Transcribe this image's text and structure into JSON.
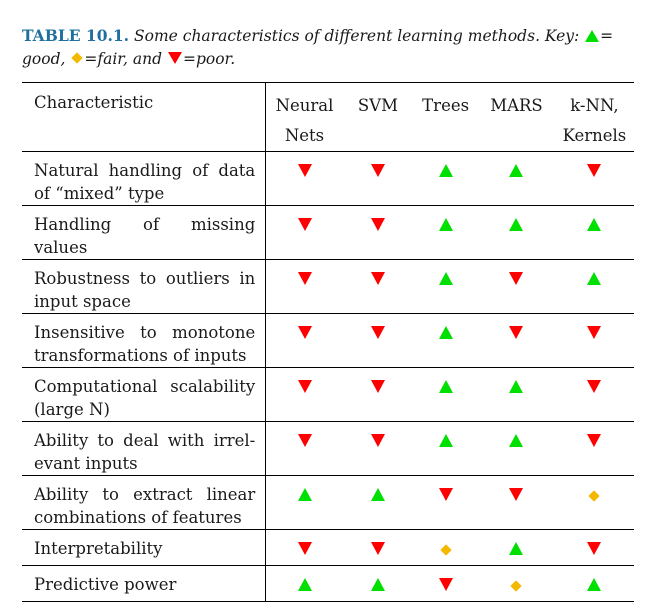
{
  "caption": {
    "label": "TABLE 10.1.",
    "text_before_key": "Some characteristics of different learning methods. Key:",
    "good": "= good,",
    "fair": "=fair, and",
    "poor": "=poor."
  },
  "table": {
    "characteristic_header": "Characteristic",
    "methods": [
      {
        "line1": "Neural",
        "line2": "Nets"
      },
      {
        "line1": "SVM",
        "line2": ""
      },
      {
        "line1": "Trees",
        "line2": ""
      },
      {
        "line1": "MARS",
        "line2": ""
      },
      {
        "line1": "k-NN,",
        "line2": "Kernels"
      }
    ],
    "rows": [
      {
        "characteristic": "Natural handling of data of “mixed” type",
        "ratings": [
          "poor",
          "poor",
          "good",
          "good",
          "poor"
        ]
      },
      {
        "characteristic": "Handling of missing values",
        "ratings": [
          "poor",
          "poor",
          "good",
          "good",
          "good"
        ]
      },
      {
        "characteristic": "Robustness to outliers in input space",
        "ratings": [
          "poor",
          "poor",
          "good",
          "poor",
          "good"
        ]
      },
      {
        "characteristic": "Insensitive to monotone transformations of inputs",
        "ratings": [
          "poor",
          "poor",
          "good",
          "poor",
          "poor"
        ]
      },
      {
        "characteristic": "Computational scalability (large N)",
        "ratings": [
          "poor",
          "poor",
          "good",
          "good",
          "poor"
        ]
      },
      {
        "characteristic": "Ability to deal with irrel-evant inputs",
        "ratings": [
          "poor",
          "poor",
          "good",
          "good",
          "poor"
        ]
      },
      {
        "characteristic": "Ability to extract linear combinations of features",
        "ratings": [
          "good",
          "good",
          "poor",
          "poor",
          "fair"
        ]
      },
      {
        "characteristic": "Interpretability",
        "ratings": [
          "poor",
          "poor",
          "fair",
          "good",
          "poor"
        ]
      },
      {
        "characteristic": "Predictive power",
        "ratings": [
          "good",
          "good",
          "poor",
          "fair",
          "good"
        ]
      }
    ]
  },
  "colors": {
    "good": "#00e000",
    "fair": "#f5b800",
    "poor": "#ff0000",
    "label": "#1f6f9f"
  }
}
